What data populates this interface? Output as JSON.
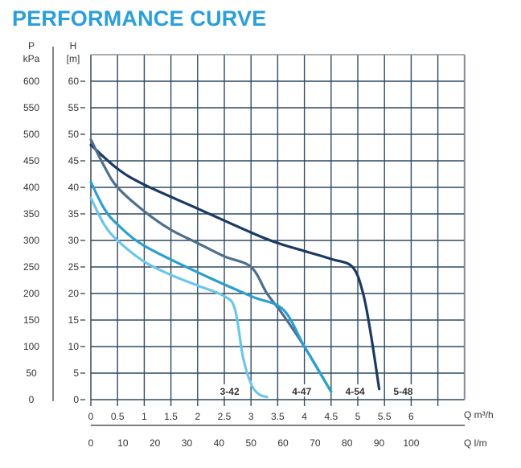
{
  "chart_data": {
    "type": "line",
    "title": "PERFORMANCE CURVE",
    "ylabel_left_outer": "P",
    "ylabel_left_outer_unit": "kPa",
    "ylabel_left_inner": "H",
    "ylabel_left_inner_unit": "[m]",
    "xlabel_top": "Q m³/h",
    "xlabel_bottom": "Q l/m",
    "xlim": [
      0,
      7
    ],
    "ylim": [
      0,
      65
    ],
    "grid": true,
    "p_ticks": [
      "600",
      "550",
      "500",
      "450",
      "400",
      "350",
      "300",
      "250",
      "200",
      "150",
      "100",
      "50",
      "0"
    ],
    "h_ticks": [
      60,
      55,
      50,
      45,
      40,
      35,
      30,
      25,
      20,
      15,
      10,
      5,
      0
    ],
    "h_tick_labels": [
      "60",
      "55",
      "50",
      "45",
      "40",
      "35",
      "30",
      "25",
      "20",
      "15",
      "10",
      "5",
      "0"
    ],
    "q_m3h_ticks": [
      0,
      0.5,
      1,
      1.5,
      2,
      2.5,
      3,
      3.5,
      4,
      4.5,
      5,
      5.5,
      6
    ],
    "q_m3h_tick_labels": [
      "0",
      "0.5",
      "1",
      "1.5",
      "2",
      "2.5",
      "3",
      "3.5",
      "4",
      "4.5",
      "5",
      "5.5",
      "6"
    ],
    "q_lm_tick_labels": [
      "0",
      "10",
      "20",
      "30",
      "40",
      "50",
      "60",
      "70",
      "80",
      "90",
      "100"
    ],
    "series": [
      {
        "name": "5-48",
        "color": "#1b3a63",
        "label_at": 5.85,
        "x": [
          0,
          0.5,
          1,
          2,
          3,
          3.5,
          4,
          4.5,
          4.9,
          5.1,
          5.25,
          5.4
        ],
        "y": [
          48,
          43.5,
          40.5,
          36,
          31.5,
          29.5,
          28,
          26.5,
          25,
          20,
          12,
          2
        ]
      },
      {
        "name": "4-54",
        "color": "#4f6f8f",
        "label_at": 4.95,
        "x": [
          0,
          0.25,
          0.5,
          1,
          1.5,
          2,
          2.5,
          3,
          3.3,
          3.6,
          4,
          4.5
        ],
        "y": [
          49,
          44,
          40,
          35.5,
          32,
          29.5,
          27,
          25,
          20,
          16,
          10,
          1.5
        ]
      },
      {
        "name": "4-47",
        "color": "#2a9fd0",
        "label_at": 3.95,
        "x": [
          0,
          0.25,
          0.5,
          1,
          2,
          3,
          3.6,
          4,
          4.5
        ],
        "y": [
          41,
          36,
          33,
          29,
          24,
          19.5,
          17,
          10,
          1.5
        ]
      },
      {
        "name": "3-42",
        "color": "#6cc6ea",
        "label_at": 2.6,
        "x": [
          0,
          0.25,
          0.5,
          1,
          1.5,
          2,
          2.5,
          2.7,
          2.85,
          3,
          3.15,
          3.3
        ],
        "y": [
          38,
          33,
          30,
          26,
          23.5,
          21.5,
          19.5,
          17,
          8,
          3,
          1,
          0.5
        ]
      }
    ]
  }
}
